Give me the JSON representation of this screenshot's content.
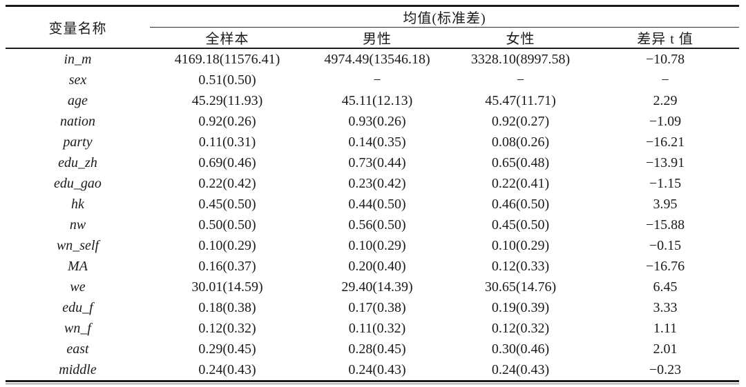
{
  "page": {
    "background_color": "#ffffff",
    "text_color": "#1a1a1a",
    "rule_color": "#1a1a1a"
  },
  "table": {
    "header": {
      "variable_col": "变量名称",
      "group": "均值(标准差)",
      "subcols": [
        "全样本",
        "男性",
        "女性",
        "差异 t 值"
      ]
    },
    "rows": [
      [
        "in_m",
        "4169.18(11576.41)",
        "4974.49(13546.18)",
        "3328.10(8997.58)",
        "−10.78"
      ],
      [
        "sex",
        "0.51(0.50)",
        "−",
        "−",
        "−"
      ],
      [
        "age",
        "45.29(11.93)",
        "45.11(12.13)",
        "45.47(11.71)",
        "2.29"
      ],
      [
        "nation",
        "0.92(0.26)",
        "0.93(0.26)",
        "0.92(0.27)",
        "−1.09"
      ],
      [
        "party",
        "0.11(0.31)",
        "0.14(0.35)",
        "0.08(0.26)",
        "−16.21"
      ],
      [
        "edu_zh",
        "0.69(0.46)",
        "0.73(0.44)",
        "0.65(0.48)",
        "−13.91"
      ],
      [
        "edu_gao",
        "0.22(0.42)",
        "0.23(0.42)",
        "0.22(0.41)",
        "−1.15"
      ],
      [
        "hk",
        "0.45(0.50)",
        "0.44(0.50)",
        "0.46(0.50)",
        "3.95"
      ],
      [
        "nw",
        "0.50(0.50)",
        "0.56(0.50)",
        "0.45(0.50)",
        "−15.88"
      ],
      [
        "wn_self",
        "0.10(0.29)",
        "0.10(0.29)",
        "0.10(0.29)",
        "−0.15"
      ],
      [
        "MA",
        "0.16(0.37)",
        "0.20(0.40)",
        "0.12(0.33)",
        "−16.76"
      ],
      [
        "we",
        "30.01(14.59)",
        "29.40(14.39)",
        "30.65(14.76)",
        "6.45"
      ],
      [
        "edu_f",
        "0.18(0.38)",
        "0.17(0.38)",
        "0.19(0.39)",
        "3.33"
      ],
      [
        "wn_f",
        "0.12(0.32)",
        "0.11(0.32)",
        "0.12(0.32)",
        "1.11"
      ],
      [
        "east",
        "0.29(0.45)",
        "0.28(0.45)",
        "0.30(0.46)",
        "2.01"
      ],
      [
        "middle",
        "0.24(0.43)",
        "0.24(0.43)",
        "0.24(0.43)",
        "−0.23"
      ]
    ]
  }
}
